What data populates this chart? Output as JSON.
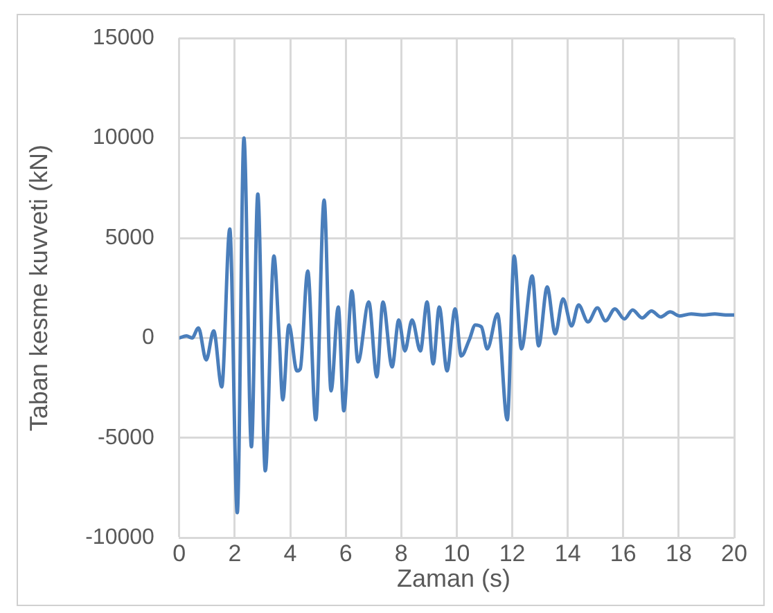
{
  "chart_data": {
    "type": "line",
    "xlabel": "Zaman (s)",
    "ylabel": "Taban kesme kuvveti (kN)",
    "xlim": [
      0,
      20
    ],
    "xticks": [
      0,
      2,
      4,
      6,
      8,
      10,
      12,
      14,
      16,
      18,
      20
    ],
    "ylim": [
      -10000,
      15000
    ],
    "yticks": [
      -10000,
      -5000,
      0,
      5000,
      10000,
      15000
    ],
    "grid": true,
    "legend": false,
    "marker": "none",
    "line_style": "solid",
    "series": [
      {
        "color": "#4a7ebb",
        "x": [
          0,
          0.26,
          0.46,
          0.69,
          0.97,
          1.24,
          1.53,
          1.82,
          2.09,
          2.33,
          2.6,
          2.83,
          3.1,
          3.41,
          3.6,
          3.73,
          3.95,
          4.24,
          4.36,
          4.63,
          4.92,
          5.22,
          5.47,
          5.73,
          5.93,
          6.22,
          6.44,
          6.83,
          7.12,
          7.34,
          7.67,
          7.91,
          8.13,
          8.39,
          8.69,
          8.93,
          9.15,
          9.37,
          9.65,
          9.94,
          10.16,
          10.45,
          10.67,
          10.89,
          11.1,
          11.47,
          11.82,
          12.07,
          12.33,
          12.72,
          12.95,
          13.26,
          13.55,
          13.83,
          14.14,
          14.39,
          14.73,
          15.07,
          15.36,
          15.7,
          16.04,
          16.34,
          16.68,
          17.02,
          17.35,
          17.69,
          18.03,
          18.45,
          18.87,
          19.3,
          19.69,
          20
        ],
        "values": [
          0,
          100,
          0,
          500,
          -1100,
          350,
          -2450,
          5450,
          -8750,
          10000,
          -5450,
          7200,
          -6650,
          4100,
          0,
          -3100,
          650,
          -1650,
          -1550,
          3350,
          -4100,
          6900,
          -2650,
          1550,
          -3650,
          2350,
          -1200,
          1800,
          -1950,
          1800,
          -1450,
          900,
          -650,
          900,
          -650,
          1800,
          -1300,
          1550,
          -1650,
          1450,
          -900,
          -100,
          650,
          550,
          -550,
          1200,
          -4100,
          4100,
          -550,
          3100,
          -400,
          2550,
          200,
          1950,
          600,
          1650,
          800,
          1500,
          850,
          1450,
          950,
          1400,
          1000,
          1350,
          1050,
          1300,
          1100,
          1200,
          1150,
          1200,
          1150,
          1150
        ]
      }
    ]
  }
}
